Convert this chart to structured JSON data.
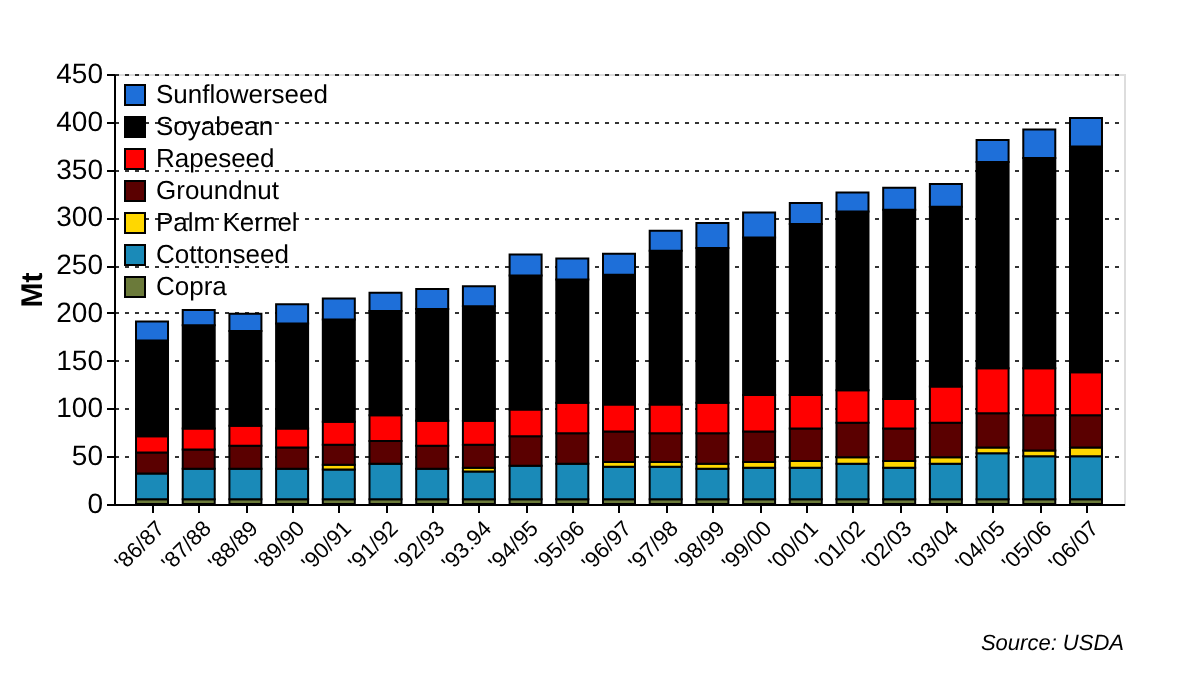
{
  "chart_data": {
    "type": "bar",
    "stacked": true,
    "ylabel": "Mt",
    "ylim": [
      0,
      450
    ],
    "yticks": [
      0,
      50,
      100,
      150,
      200,
      250,
      300,
      350,
      400,
      450
    ],
    "grid": "y",
    "legend": "top left",
    "categories": [
      "'86/87",
      "'87/88",
      "'88/89",
      "'89/90",
      "'90/91",
      "'91/92",
      "'92/93",
      "'93.94",
      "'94/95",
      "'95/96",
      "'96/97",
      "'97/98",
      "'98/99",
      "'99/00",
      "'00/01",
      "'01/02",
      "'02/03",
      "'03/04",
      "'04/05",
      "'05/06",
      "'06/07"
    ],
    "series": [
      {
        "name": "Copra",
        "color": "#6b7a3a",
        "values": [
          5,
          5,
          5,
          5,
          5,
          5,
          5,
          5,
          5,
          5,
          5,
          5,
          5,
          5,
          5,
          5,
          5,
          5,
          5,
          5,
          5
        ]
      },
      {
        "name": "Cottonseed",
        "color": "#1a8ab8",
        "values": [
          27,
          32,
          32,
          32,
          31,
          37,
          32,
          29,
          35,
          37,
          34,
          34,
          32,
          33,
          33,
          37,
          33,
          37,
          48,
          45,
          45
        ]
      },
      {
        "name": "Palm Kernel",
        "color": "#ffd700",
        "values": [
          null,
          null,
          null,
          null,
          5,
          null,
          null,
          4,
          null,
          null,
          5,
          5,
          5,
          6,
          7,
          7,
          7,
          7,
          6,
          6,
          9
        ]
      },
      {
        "name": "Groundnut",
        "color": "#5a0000",
        "values": [
          22,
          20,
          24,
          22,
          21,
          24,
          24,
          24,
          31,
          32,
          32,
          30,
          32,
          32,
          34,
          36,
          34,
          36,
          36,
          37,
          34
        ]
      },
      {
        "name": "Rapeseed",
        "color": "#ff0000",
        "values": [
          17,
          22,
          21,
          20,
          24,
          27,
          26,
          25,
          28,
          32,
          28,
          30,
          32,
          38,
          35,
          34,
          31,
          38,
          47,
          49,
          45
        ]
      },
      {
        "name": "Soyabean",
        "color": "#000000",
        "values": [
          100,
          108,
          99,
          110,
          107,
          109,
          117,
          120,
          140,
          129,
          136,
          161,
          162,
          165,
          179,
          187,
          198,
          188,
          216,
          220,
          236
        ]
      },
      {
        "name": "Sunflowerseed",
        "color": "#1e6fd9",
        "values": [
          20,
          16,
          18,
          20,
          22,
          19,
          21,
          21,
          22,
          22,
          22,
          21,
          26,
          26,
          22,
          20,
          23,
          24,
          23,
          30,
          30
        ]
      }
    ],
    "annotations": [
      "Source: USDA"
    ]
  }
}
